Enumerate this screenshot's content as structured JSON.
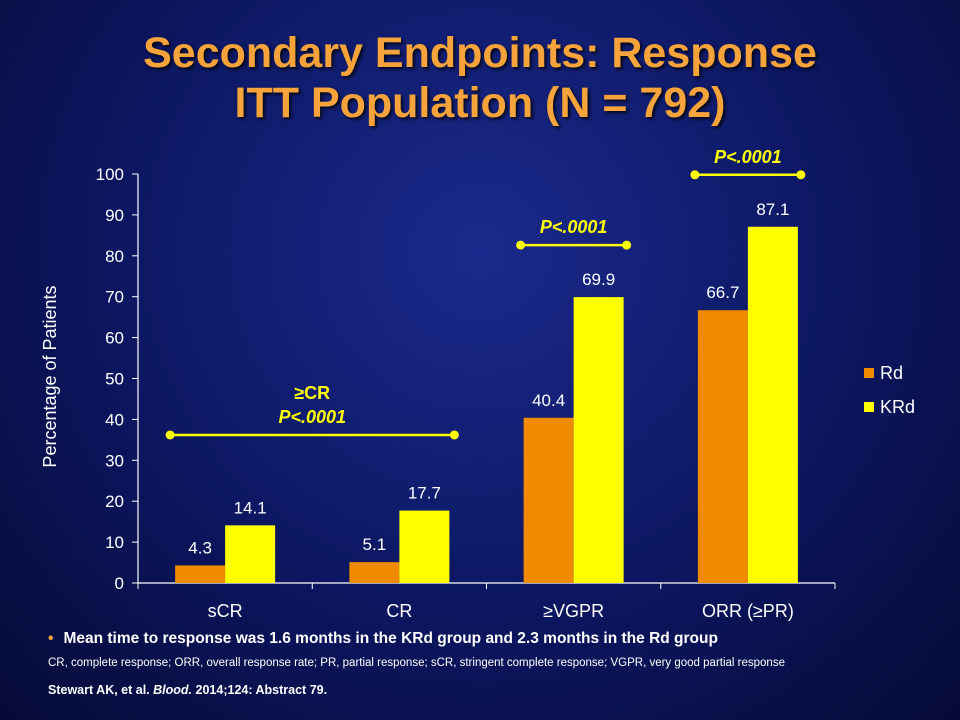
{
  "slide": {
    "title_line1": "Secondary Endpoints: Response",
    "title_line2": "ITT Population (N = 792)",
    "note": "Mean time to response was 1.6 months in the KRd group and 2.3 months in the Rd group",
    "abbreviations": "CR, complete response; ORR, overall response rate; PR, partial response; sCR, stringent complete response; VGPR, very good partial response",
    "citation_authors": "Stewart AK, et al.",
    "citation_journal": "Blood.",
    "citation_rest": "2014;124: Abstract 79."
  },
  "chart_data": {
    "type": "bar",
    "categories": [
      "sCR",
      "CR",
      "≥VGPR",
      "ORR (≥PR)"
    ],
    "series": [
      {
        "name": "Rd",
        "values": [
          4.3,
          5.1,
          40.4,
          66.7
        ],
        "color": "#f08a00"
      },
      {
        "name": "KRd",
        "values": [
          14.1,
          17.7,
          69.9,
          87.1
        ],
        "color": "#ffff00"
      }
    ],
    "ylabel": "Percentage of Patients",
    "ylim": [
      0,
      100
    ],
    "yticks": [
      0,
      10,
      20,
      30,
      40,
      50,
      60,
      70,
      80,
      90,
      100
    ],
    "legend_position": "right",
    "annotations": [
      {
        "label_line1": "≥CR",
        "label_line2": "P<.0001",
        "span_categories": [
          0,
          1
        ]
      },
      {
        "label_line1": "",
        "label_line2": "P<.0001",
        "span_categories": [
          2,
          2
        ]
      },
      {
        "label_line1": "",
        "label_line2": "P<.0001",
        "span_categories": [
          3,
          3
        ]
      }
    ],
    "colors": {
      "bracket": "#ffff00",
      "axis": "#ffffff"
    }
  }
}
